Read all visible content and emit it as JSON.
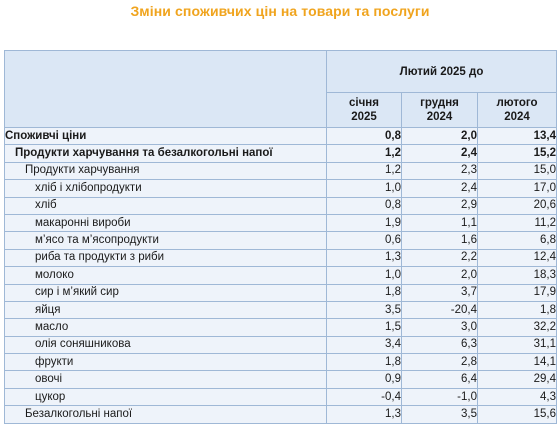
{
  "title": "Зміни споживчих цін на товари та послуги",
  "header": {
    "period": "Лютий 2025 до",
    "columns": [
      {
        "line1": "січня",
        "line2": "2025"
      },
      {
        "line1": "грудня",
        "line2": "2024"
      },
      {
        "line1": "лютого",
        "line2": "2024"
      }
    ]
  },
  "rows": [
    {
      "label": "Споживчі ціни",
      "level": 0,
      "v": [
        "0,8",
        "2,0",
        "13,4"
      ]
    },
    {
      "label": "Продукти харчування та безалкогольні напої",
      "level": 1,
      "v": [
        "1,2",
        "2,4",
        "15,2"
      ]
    },
    {
      "label": "Продукти харчування",
      "level": 2,
      "v": [
        "1,2",
        "2,3",
        "15,0"
      ]
    },
    {
      "label": "хліб і хлібопродукти",
      "level": 3,
      "v": [
        "1,0",
        "2,4",
        "17,0"
      ]
    },
    {
      "label": "хліб",
      "level": 3,
      "v": [
        "0,8",
        "2,9",
        "20,6"
      ]
    },
    {
      "label": "макаронні вироби",
      "level": 3,
      "v": [
        "1,9",
        "1,1",
        "11,2"
      ]
    },
    {
      "label": "м’ясо та м’ясопродукти",
      "level": 3,
      "v": [
        "0,6",
        "1,6",
        "6,8"
      ]
    },
    {
      "label": "риба та продукти з риби",
      "level": 3,
      "v": [
        "1,3",
        "2,2",
        "12,4"
      ]
    },
    {
      "label": "молоко",
      "level": 3,
      "v": [
        "1,0",
        "2,0",
        "18,3"
      ]
    },
    {
      "label": "сир і м’який сир",
      "level": 3,
      "v": [
        "1,8",
        "3,7",
        "17,9"
      ]
    },
    {
      "label": "яйця",
      "level": 3,
      "v": [
        "3,5",
        "-20,4",
        "1,8"
      ]
    },
    {
      "label": "масло",
      "level": 3,
      "v": [
        "1,5",
        "3,0",
        "32,2"
      ]
    },
    {
      "label": "олія соняшникова",
      "level": 3,
      "v": [
        "3,4",
        "6,3",
        "31,1"
      ]
    },
    {
      "label": "фрукти",
      "level": 3,
      "v": [
        "1,8",
        "2,8",
        "14,1"
      ]
    },
    {
      "label": "овочі",
      "level": 3,
      "v": [
        "0,9",
        "6,4",
        "29,4"
      ]
    },
    {
      "label": "цукор",
      "level": 3,
      "v": [
        "-0,4",
        "-1,0",
        "4,3"
      ]
    },
    {
      "label": "Безалкогольні напої",
      "level": 2,
      "v": [
        "1,3",
        "3,5",
        "15,6"
      ]
    }
  ]
}
